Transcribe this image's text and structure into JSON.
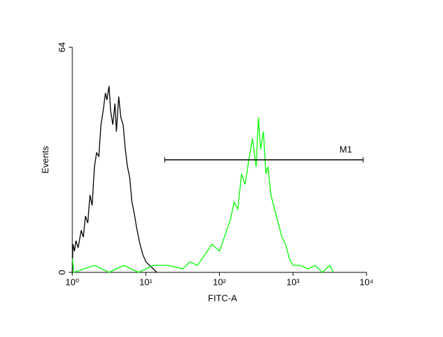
{
  "chart_data": {
    "type": "line",
    "x_label": "FITC-A",
    "y_label": "Events",
    "xscale": "log",
    "xlim": [
      1,
      10000
    ],
    "xticks": [
      {
        "value": 1,
        "label": "10⁰"
      },
      {
        "value": 10,
        "label": "10¹"
      },
      {
        "value": 100,
        "label": "10²"
      },
      {
        "value": 1000,
        "label": "10³"
      },
      {
        "value": 10000,
        "label": "10⁴"
      }
    ],
    "ylim": [
      0,
      64
    ],
    "yticks": [
      0,
      64
    ],
    "series": [
      {
        "color": "#000000",
        "x": [
          1,
          1.02,
          1.07,
          1.12,
          1.2,
          1.32,
          1.41,
          1.51,
          1.62,
          1.74,
          1.86,
          2.0,
          2.14,
          2.29,
          2.45,
          2.63,
          2.82,
          2.95,
          3.16,
          3.31,
          3.55,
          3.8,
          3.98,
          4.27,
          4.57,
          4.9,
          5.25,
          5.62,
          6.03,
          6.46,
          6.92,
          7.59,
          8.32,
          9.12,
          10,
          11.2,
          12.6,
          14.1
        ],
        "values": [
          0,
          8,
          6,
          9,
          7,
          12,
          10,
          16,
          14,
          22,
          19,
          30,
          34,
          33,
          42,
          46,
          51,
          49,
          53,
          46,
          42,
          48,
          40,
          50,
          44,
          42,
          35,
          30,
          27,
          20,
          17,
          12,
          8,
          5,
          3,
          2,
          1,
          0
        ]
      },
      {
        "color": "#00ff00",
        "x": [
          1,
          1.05,
          2,
          3.16,
          5.01,
          7.94,
          12.6,
          20,
          31.6,
          39.8,
          50.1,
          63.1,
          79.4,
          100,
          126,
          141,
          158,
          178,
          200,
          224,
          251,
          282,
          316,
          339,
          363,
          398,
          427,
          457,
          501,
          562,
          631,
          708,
          794,
          891,
          1000,
          1259,
          1585,
          1995,
          2512,
          3162,
          3548
        ],
        "values": [
          4,
          0,
          2,
          0,
          2,
          0,
          2,
          2,
          1,
          3,
          2,
          5,
          8,
          6,
          12,
          15,
          20,
          18,
          28,
          25,
          32,
          38,
          30,
          44,
          35,
          40,
          28,
          30,
          22,
          18,
          14,
          10,
          8,
          4,
          2,
          2,
          1,
          2,
          0,
          2,
          0
        ]
      }
    ],
    "marker": {
      "label": "M1",
      "range": [
        18,
        9000
      ],
      "y": 32
    }
  }
}
